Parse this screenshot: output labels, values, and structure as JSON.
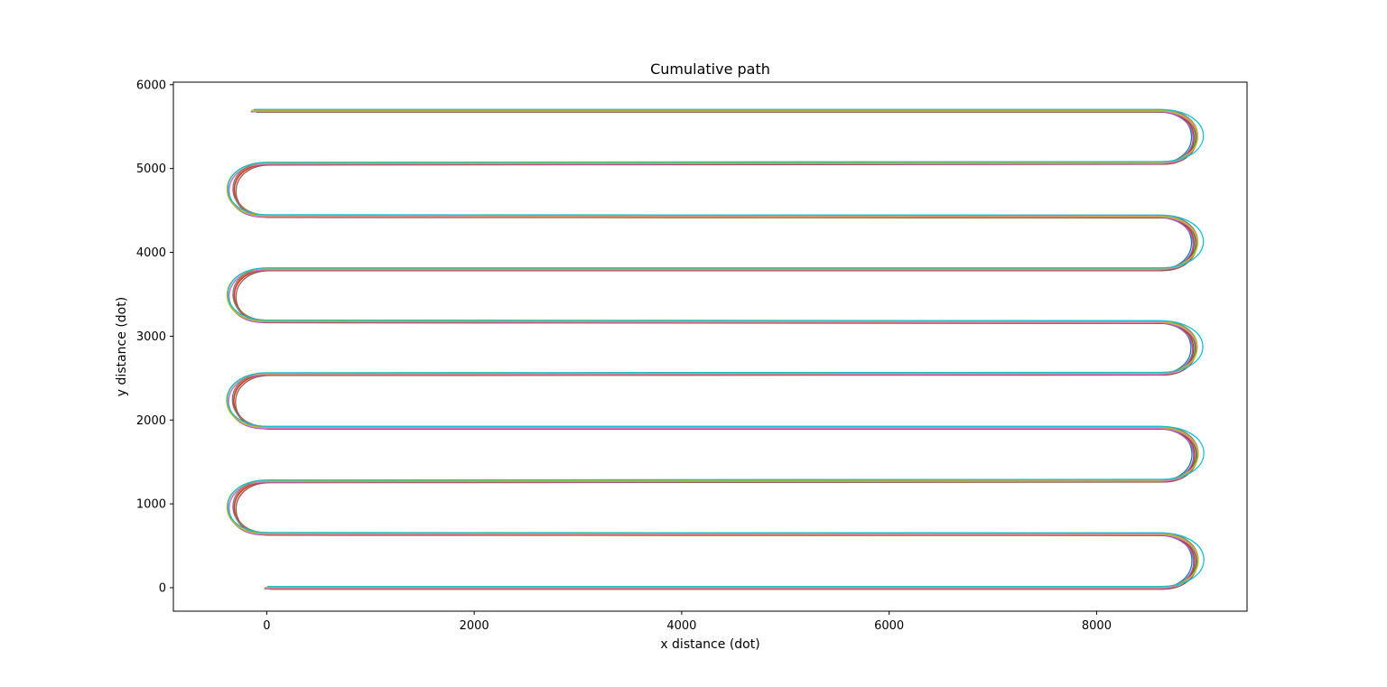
{
  "chart_data": {
    "type": "line",
    "title": "Cumulative path",
    "xlabel": "x distance (dot)",
    "ylabel": "y distance (dot)",
    "xlim": [
      -900,
      9450
    ],
    "ylim": [
      -280,
      6030
    ],
    "xticks": [
      0,
      2000,
      4000,
      6000,
      8000
    ],
    "yticks": [
      0,
      1000,
      2000,
      3000,
      4000,
      5000,
      6000
    ],
    "grid": false,
    "legend": "none",
    "path": {
      "start": [
        0,
        0
      ],
      "end": [
        -130,
        5690
      ],
      "row_y": [
        0,
        640,
        1270,
        1910,
        2550,
        3170,
        3800,
        4430,
        5060,
        5690
      ],
      "right_turn_x": 8600,
      "left_turn_x": 0,
      "turn_radius": 320
    },
    "series": [
      {
        "color": "#1f77b4",
        "dx": 0,
        "dy": 0,
        "bulge": 0
      },
      {
        "color": "#ff7f0e",
        "dx": 20,
        "dy": 8,
        "bulge": 30
      },
      {
        "color": "#2ca02c",
        "dx": -15,
        "dy": -6,
        "bulge": 55
      },
      {
        "color": "#d62728",
        "dx": 10,
        "dy": -10,
        "bulge": 15
      },
      {
        "color": "#9467bd",
        "dx": -25,
        "dy": -14,
        "bulge": 40
      },
      {
        "color": "#8c564b",
        "dx": 30,
        "dy": -18,
        "bulge": 20
      },
      {
        "color": "#e377c2",
        "dx": -10,
        "dy": -8,
        "bulge": 65
      },
      {
        "color": "#7f7f7f",
        "dx": 15,
        "dy": 12,
        "bulge": 45
      },
      {
        "color": "#bcbd22",
        "dx": -20,
        "dy": 4,
        "bulge": 80
      },
      {
        "color": "#17becf",
        "dx": 5,
        "dy": 14,
        "bulge": 110
      }
    ]
  }
}
